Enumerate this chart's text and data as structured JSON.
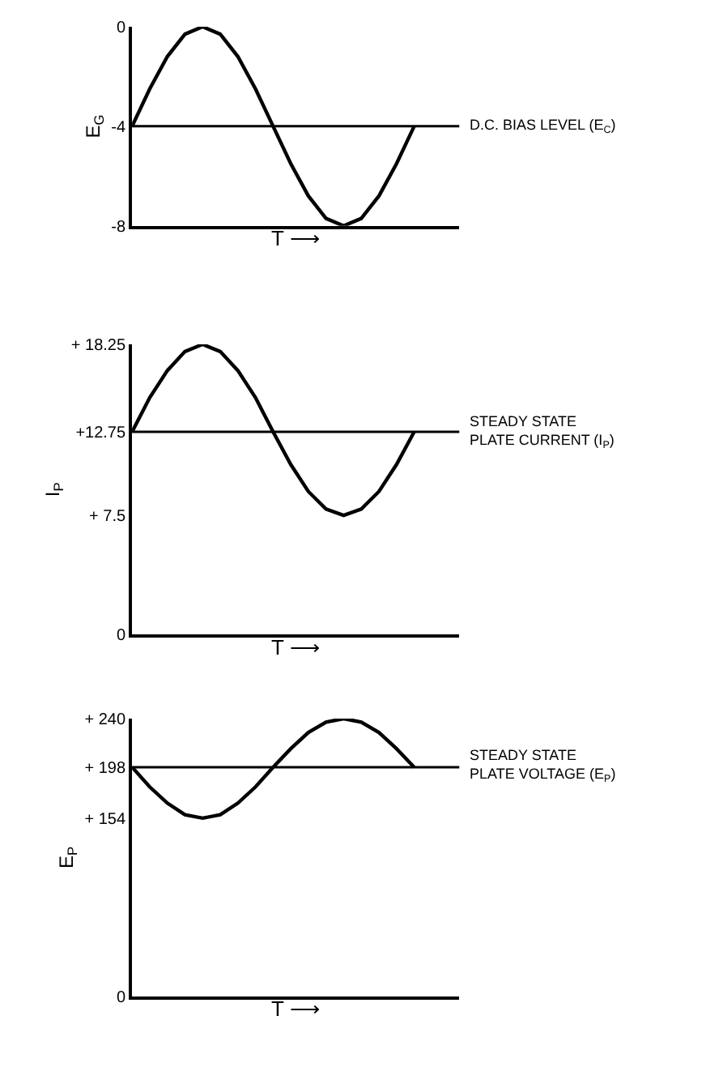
{
  "chart_data": [
    {
      "type": "line",
      "xlabel": "T ⟶",
      "ylabel": "E$_{G}$",
      "categories": [
        null,
        null,
        null,
        null,
        null,
        null,
        null,
        null,
        null,
        null,
        null,
        null,
        null,
        null,
        null,
        null,
        null
      ],
      "series": [
        {
          "color": "#000000",
          "values": [
            -4,
            -2.5,
            -1.2,
            -0.3,
            0,
            -0.3,
            -1.2,
            -2.5,
            -4,
            -5.5,
            -6.8,
            -7.7,
            -8,
            -7.7,
            -6.8,
            -5.5,
            -4
          ]
        }
      ],
      "ylim": [
        -8,
        0
      ],
      "yticks": [
        0,
        -4,
        -8
      ],
      "tick_labels": "y",
      "ref_lines": [
        {
          "axis": "y",
          "value": -4,
          "label": "D.C. BIAS LEVEL (E$_{C}$)",
          "color": "#000000"
        }
      ]
    },
    {
      "type": "line",
      "xlabel": "T ⟶",
      "ylabel": "I$_{P}$",
      "categories": [
        null,
        null,
        null,
        null,
        null,
        null,
        null,
        null,
        null,
        null,
        null,
        null,
        null,
        null,
        null,
        null,
        null
      ],
      "series": [
        {
          "color": "#000000",
          "values": [
            12.75,
            14.9,
            16.6,
            17.8,
            18.25,
            17.8,
            16.6,
            14.9,
            12.75,
            10.7,
            9,
            7.9,
            7.5,
            7.9,
            9,
            10.7,
            12.75
          ]
        }
      ],
      "ylim": [
        0,
        18.25
      ],
      "yticks": [
        {
          "value": 18.25,
          "label": "+ 18.25"
        },
        {
          "value": 12.75,
          "label": "+12.75"
        },
        {
          "value": 7.5,
          "label": "+ 7.5"
        },
        0
      ],
      "tick_labels": "y",
      "ref_lines": [
        {
          "axis": "y",
          "value": 12.75,
          "label": "STEADY STATE\nPLATE CURRENT (I$_{P}$)",
          "color": "#000000"
        }
      ]
    },
    {
      "type": "line",
      "xlabel": "T ⟶",
      "ylabel": "E$_{P}$",
      "categories": [
        null,
        null,
        null,
        null,
        null,
        null,
        null,
        null,
        null,
        null,
        null,
        null,
        null,
        null,
        null,
        null,
        null
      ],
      "series": [
        {
          "color": "#000000",
          "values": [
            198,
            181,
            167,
            157,
            154,
            157,
            167,
            181,
            198,
            214,
            228,
            237,
            240,
            237,
            228,
            214,
            198
          ]
        }
      ],
      "ylim": [
        0,
        240
      ],
      "yticks": [
        {
          "value": 240,
          "label": "+ 240"
        },
        {
          "value": 198,
          "label": "+ 198"
        },
        {
          "value": 154,
          "label": "+ 154"
        },
        0
      ],
      "tick_labels": "y",
      "ref_lines": [
        {
          "axis": "y",
          "value": 198,
          "label": "STEADY STATE\nPLATE VOLTAGE (E$_{P}$)",
          "color": "#000000"
        }
      ]
    }
  ]
}
